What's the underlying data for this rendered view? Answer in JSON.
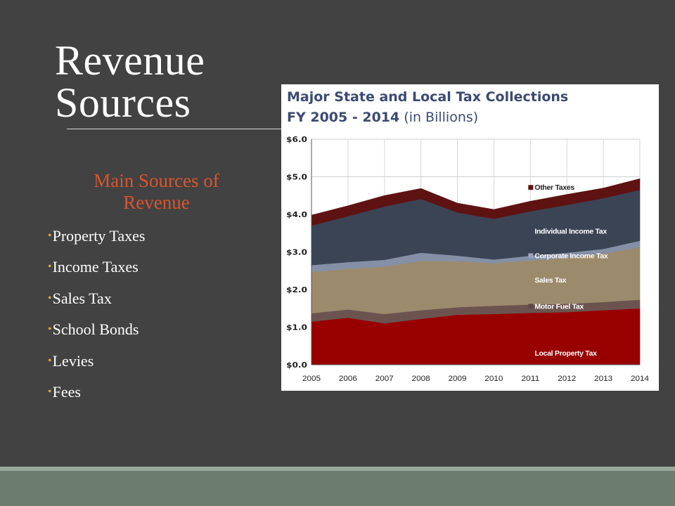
{
  "slide": {
    "title_line1": "Revenue",
    "title_line2": "Sources",
    "subheading": "Main Sources of Revenue",
    "bullets": [
      "Property Taxes",
      "Income Taxes",
      "Sales Tax",
      "School Bonds",
      "Levies",
      "Fees"
    ]
  },
  "chart_data": {
    "type": "area",
    "stacked": true,
    "title": "Major State and Local Tax Collections",
    "subtitle_bold": "FY 2005 - 2014",
    "subtitle_rest": "(in Billions)",
    "x": [
      "2005",
      "2006",
      "2007",
      "2008",
      "2009",
      "2010",
      "2011",
      "2012",
      "2013",
      "2014"
    ],
    "ylim": [
      0,
      6
    ],
    "yticks": [
      "$0.0",
      "$1.0",
      "$2.0",
      "$3.0",
      "$4.0",
      "$5.0",
      "$6.0"
    ],
    "series": [
      {
        "name": "Local Property Tax",
        "color": "#980000",
        "values": [
          1.15,
          1.25,
          1.1,
          1.22,
          1.33,
          1.35,
          1.38,
          1.4,
          1.45,
          1.5
        ]
      },
      {
        "name": "Motor Fuel Tax",
        "color": "#6b5450",
        "values": [
          0.22,
          0.22,
          0.25,
          0.23,
          0.2,
          0.22,
          0.22,
          0.22,
          0.22,
          0.23
        ]
      },
      {
        "name": "Sales Tax",
        "color": "#9c8a6c",
        "values": [
          1.1,
          1.08,
          1.26,
          1.31,
          1.22,
          1.13,
          1.17,
          1.23,
          1.28,
          1.4
        ]
      },
      {
        "name": "Corporate Income Tax",
        "color": "#8590a6",
        "values": [
          0.18,
          0.18,
          0.18,
          0.22,
          0.15,
          0.1,
          0.13,
          0.13,
          0.13,
          0.17
        ]
      },
      {
        "name": "Individual Income Tax",
        "color": "#3b4455",
        "values": [
          1.05,
          1.22,
          1.42,
          1.43,
          1.15,
          1.08,
          1.18,
          1.27,
          1.35,
          1.35
        ]
      },
      {
        "name": "Other Taxes",
        "color": "#5e1212",
        "values": [
          0.28,
          0.28,
          0.29,
          0.28,
          0.25,
          0.25,
          0.27,
          0.28,
          0.27,
          0.3
        ]
      }
    ],
    "legend_placement": "inline-right",
    "grid": true
  }
}
